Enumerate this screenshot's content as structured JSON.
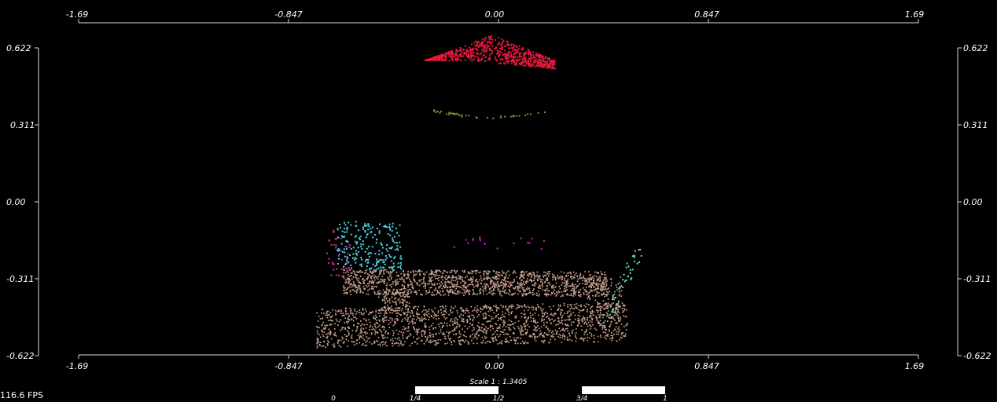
{
  "viewer": {
    "fps_text": "116.6 FPS",
    "background_color": "#000000"
  },
  "axes": {
    "x_ticks": [
      "-1.69",
      "-0.847",
      "0.00",
      "0.847",
      "1.69"
    ],
    "y_ticks": [
      "0.622",
      "0.311",
      "0.00",
      "-0.311",
      "-0.622"
    ]
  },
  "scale_bar": {
    "title": "Scale 1 : 1.3405",
    "labels": [
      "0",
      "1/4",
      "1/2",
      "3/4",
      "1"
    ]
  },
  "point_cloud": {
    "clusters": [
      {
        "name": "top-cap",
        "color": "#e8193c"
      },
      {
        "name": "olive-ring",
        "color": "#8b8b3a"
      },
      {
        "name": "magenta-dots",
        "color": "#d21ec8"
      },
      {
        "name": "cyan-cluster",
        "color": "#4fd2e6"
      },
      {
        "name": "teal-strand",
        "color": "#5fe0b8"
      },
      {
        "name": "pink-left",
        "color": "#c8329a"
      },
      {
        "name": "base-body",
        "color": "#c8a08c"
      }
    ]
  }
}
